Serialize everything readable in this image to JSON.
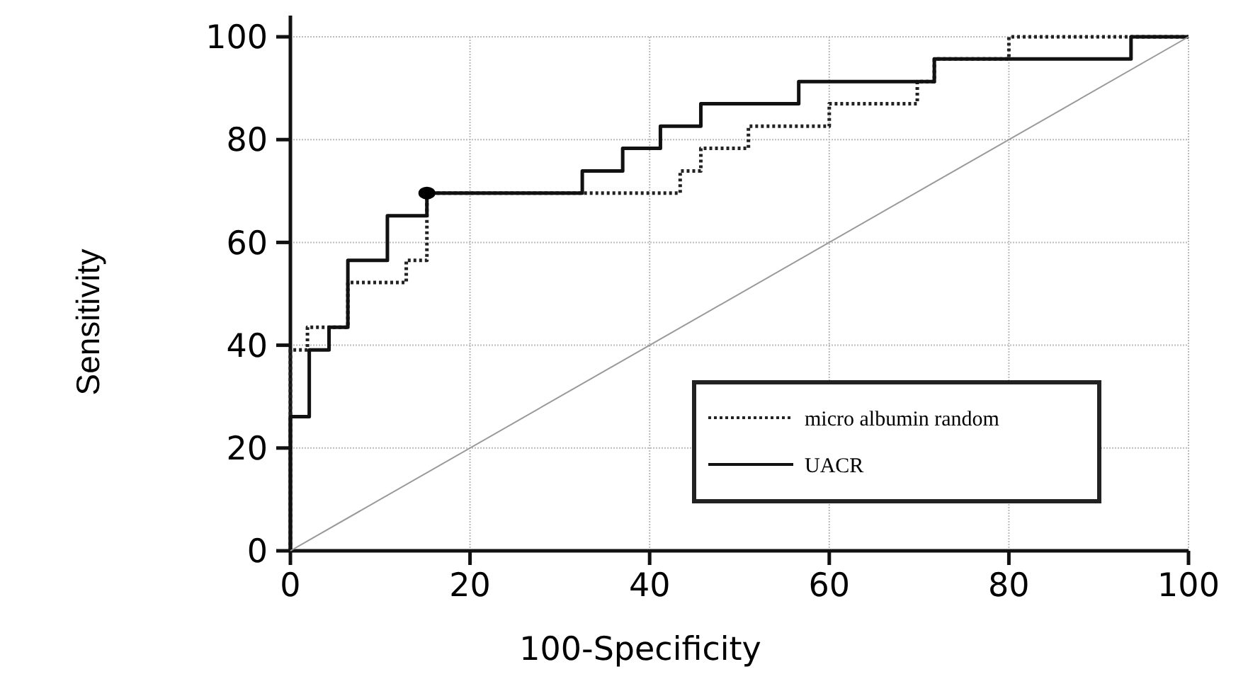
{
  "chart_data": {
    "type": "step",
    "xlabel": "100-Specificity",
    "ylabel": "Sensitivity",
    "xlim": [
      0,
      100
    ],
    "ylim": [
      0,
      100
    ],
    "xticks": [
      0,
      20,
      40,
      60,
      80,
      100
    ],
    "yticks": [
      0,
      20,
      40,
      60,
      80,
      100
    ],
    "grid": true,
    "legend": "bottom right",
    "series": [
      {
        "name": "micro albumin random",
        "color": "#222222",
        "line_style": "dotted",
        "x": [
          0,
          0,
          1.9,
          6.4,
          12.9,
          15.2,
          43.4,
          45.7,
          51,
          60,
          69.8,
          71.7,
          80,
          100
        ],
        "values": [
          0,
          39.1,
          43.5,
          52.2,
          56.5,
          69.6,
          73.9,
          78.3,
          82.6,
          87,
          91.3,
          95.7,
          100,
          100
        ]
      },
      {
        "name": "UACR",
        "color": "#111111",
        "line_style": "solid",
        "x": [
          0,
          0,
          2.1,
          4.3,
          6.4,
          10.8,
          15.2,
          32.5,
          37,
          41.2,
          45.7,
          56.6,
          71.7,
          93.6,
          100
        ],
        "values": [
          0,
          26.1,
          39.1,
          43.5,
          56.5,
          65.2,
          69.6,
          73.9,
          78.3,
          82.6,
          87,
          91.3,
          95.7,
          100,
          100
        ]
      },
      {
        "type": "line",
        "color": "#999999",
        "line_style": "solid",
        "x": [
          0,
          100
        ],
        "values": [
          0,
          100
        ]
      },
      {
        "type": "scatter",
        "color": "#000000",
        "marker": "circle",
        "x": [
          15.2
        ],
        "values": [
          69.6
        ]
      }
    ]
  }
}
